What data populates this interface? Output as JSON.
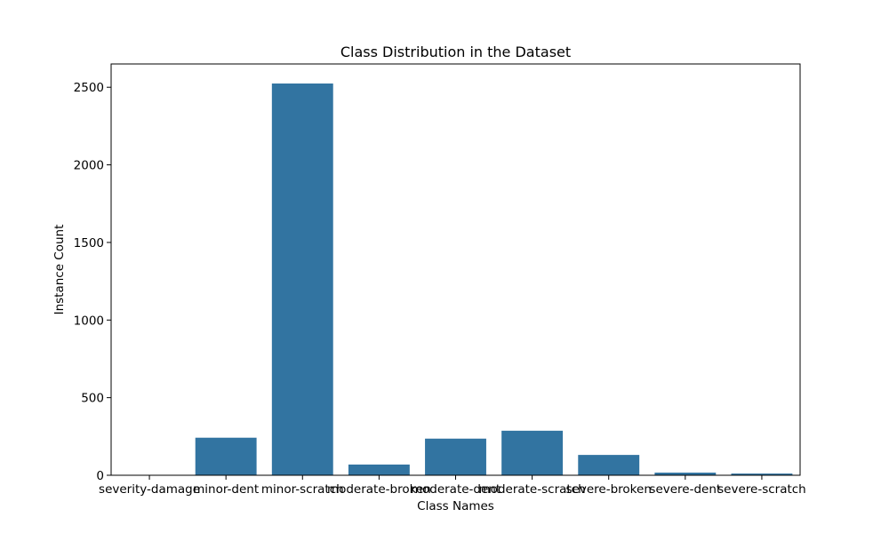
{
  "chart_data": {
    "type": "bar",
    "title": "Class Distribution in the Dataset",
    "xlabel": "Class Names",
    "ylabel": "Instance Count",
    "categories": [
      "severity-damage",
      "minor-dent",
      "minor-scratch",
      "moderate-broken",
      "moderate-dent",
      "moderate-scratch",
      "severe-broken",
      "severe-dent",
      "severe-scratch"
    ],
    "values": [
      2,
      242,
      2524,
      69,
      236,
      287,
      131,
      17,
      11
    ],
    "ylim": [
      0,
      2650
    ],
    "yticks": [
      0,
      500,
      1000,
      1500,
      2000,
      2500
    ],
    "grid": false,
    "bar_color": "#3274a1"
  }
}
